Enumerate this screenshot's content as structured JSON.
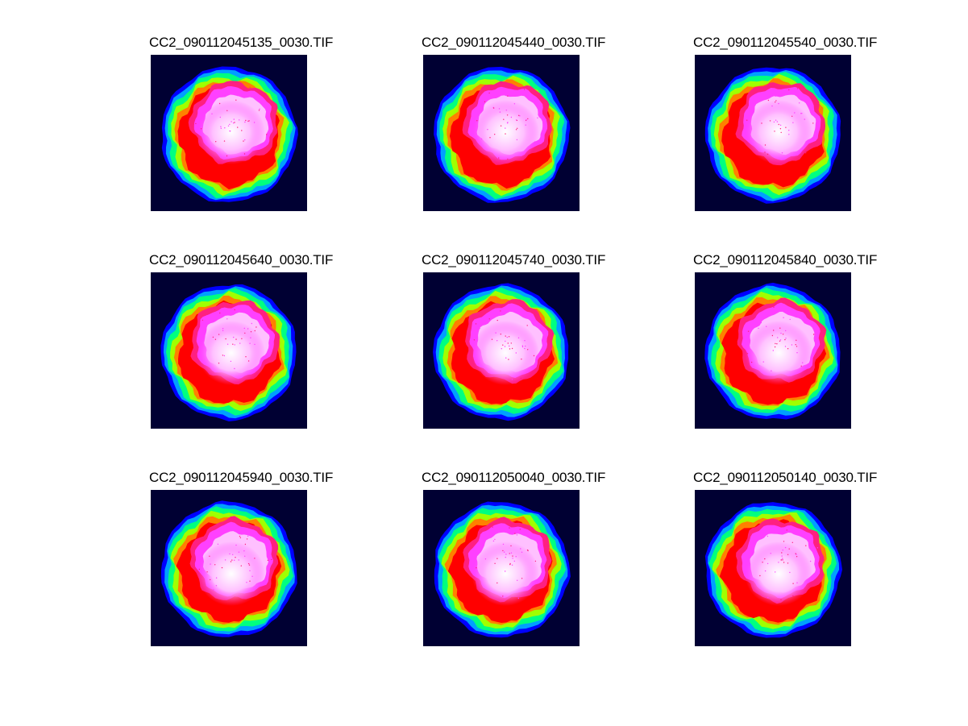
{
  "figure": {
    "background_color": "#ffffff",
    "colormap": [
      "#000033",
      "#0000ff",
      "#00a0ff",
      "#00ff80",
      "#a0ff00",
      "#ffff00",
      "#ff8000",
      "#ff0000",
      "#ff2080",
      "#ff40ff",
      "#ffc0ff",
      "#ffffff"
    ],
    "panels": [
      {
        "title": "CC2_090112045135_0030.TIF",
        "variant": 0
      },
      {
        "title": "CC2_090112045440_0030.TIF",
        "variant": 1
      },
      {
        "title": "CC2_090112045540_0030.TIF",
        "variant": 2
      },
      {
        "title": "CC2_090112045640_0030.TIF",
        "variant": 3
      },
      {
        "title": "CC2_090112045740_0030.TIF",
        "variant": 4
      },
      {
        "title": "CC2_090112045840_0030.TIF",
        "variant": 5
      },
      {
        "title": "CC2_090112045940_0030.TIF",
        "variant": 6
      },
      {
        "title": "CC2_090112050040_0030.TIF",
        "variant": 7
      },
      {
        "title": "CC2_090112050140_0030.TIF",
        "variant": 8
      }
    ]
  }
}
